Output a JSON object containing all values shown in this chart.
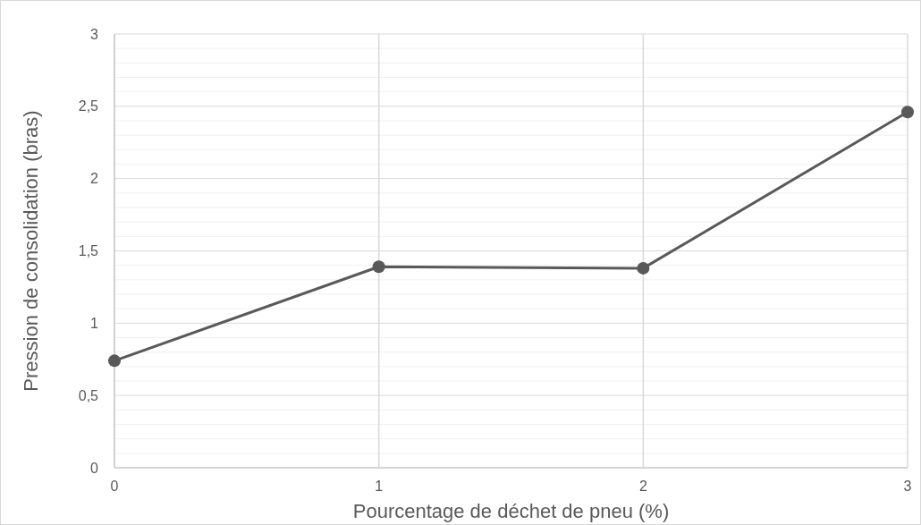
{
  "chart_data": {
    "type": "line",
    "xlabel": "Pourcentage de déchet de pneu (%)",
    "ylabel": "Pression de consolidation (bras)",
    "x": [
      0,
      1,
      2,
      3
    ],
    "series": [
      {
        "color": "#595959",
        "values": [
          0.74,
          1.39,
          1.38,
          2.46
        ]
      }
    ],
    "xlim": [
      0,
      3
    ],
    "xticks": [
      0,
      1,
      2,
      3
    ],
    "ylim": [
      0,
      3
    ],
    "yticks": [
      0,
      {
        "value": 0.1,
        "label": null
      },
      {
        "value": 0.2,
        "label": null
      },
      {
        "value": 0.3,
        "label": null
      },
      {
        "value": 0.4,
        "label": null
      },
      {
        "value": 0.5,
        "label": "0,5"
      },
      {
        "value": 0.6,
        "label": null
      },
      {
        "value": 0.7,
        "label": null
      },
      {
        "value": 0.8,
        "label": null
      },
      {
        "value": 0.9,
        "label": null
      },
      1,
      {
        "value": 1.1,
        "label": null
      },
      {
        "value": 1.2,
        "label": null
      },
      {
        "value": 1.3,
        "label": null
      },
      {
        "value": 1.4,
        "label": null
      },
      {
        "value": 1.5,
        "label": "1,5"
      },
      {
        "value": 1.6,
        "label": null
      },
      {
        "value": 1.7,
        "label": null
      },
      {
        "value": 1.8,
        "label": null
      },
      {
        "value": 1.9,
        "label": null
      },
      2,
      {
        "value": 2.1,
        "label": null
      },
      {
        "value": 2.2,
        "label": null
      },
      {
        "value": 2.3,
        "label": null
      },
      {
        "value": 2.4,
        "label": null
      },
      {
        "value": 2.5,
        "label": "2,5"
      },
      {
        "value": 2.6,
        "label": null
      },
      {
        "value": 2.7,
        "label": null
      },
      {
        "value": 2.8,
        "label": null
      },
      {
        "value": 2.9,
        "label": null
      },
      3
    ],
    "grid": true,
    "marker": "circle",
    "line_style": "solid"
  }
}
